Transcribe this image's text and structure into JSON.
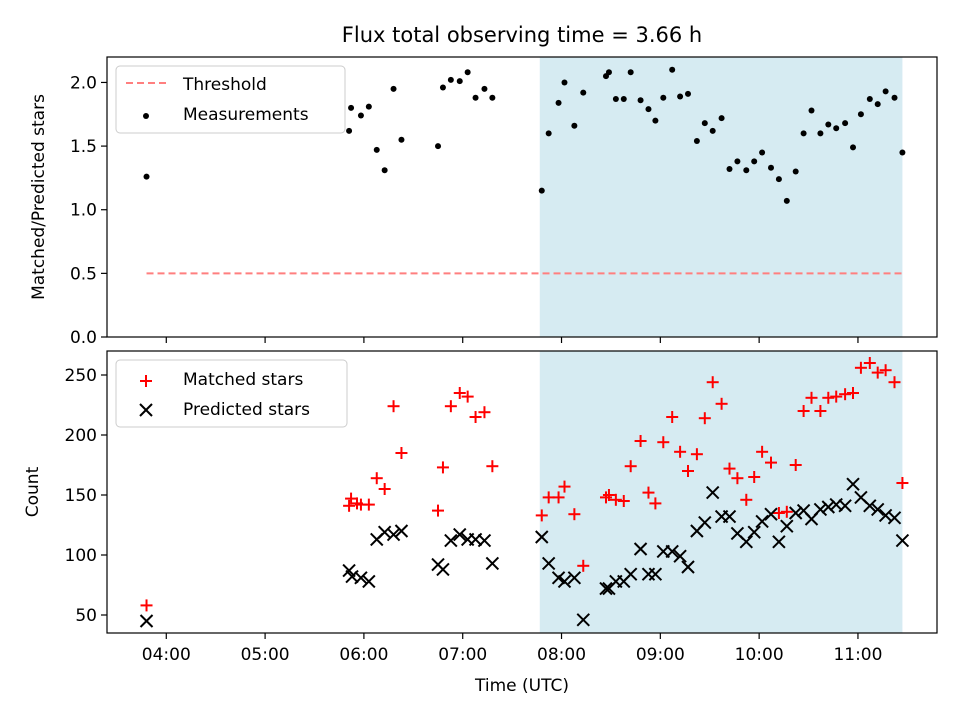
{
  "title": "Flux total observing time = 3.66 h",
  "xlabel": "Time (UTC)",
  "x_ticks": [
    "04:00",
    "05:00",
    "06:00",
    "07:00",
    "08:00",
    "09:00",
    "10:00",
    "11:00"
  ],
  "chart_data": [
    {
      "type": "scatter",
      "ylabel": "Matched/Predicted stars",
      "ylim": [
        0,
        2.2
      ],
      "yticks": [
        "0.0",
        "0.5",
        "1.0",
        "1.5",
        "2.0"
      ],
      "xlim_hours": [
        3.4,
        11.8
      ],
      "grid": false,
      "legend_position": "upper left",
      "shaded_span_hours": [
        7.78,
        11.45
      ],
      "threshold": {
        "name": "Threshold",
        "value": 0.5,
        "x_start": 3.8,
        "x_end": 11.45,
        "color": "#ff7f7f"
      },
      "series": [
        {
          "name": "Measurements",
          "color": "#000000",
          "x": [
            3.8,
            5.85,
            5.87,
            5.97,
            6.05,
            6.13,
            6.21,
            6.3,
            6.38,
            6.75,
            6.8,
            6.88,
            6.97,
            7.05,
            7.13,
            7.22,
            7.3,
            7.8,
            7.87,
            7.97,
            8.03,
            8.13,
            8.22,
            8.45,
            8.48,
            8.55,
            8.63,
            8.7,
            8.8,
            8.88,
            8.95,
            9.03,
            9.12,
            9.2,
            9.28,
            9.37,
            9.45,
            9.53,
            9.62,
            9.7,
            9.78,
            9.87,
            9.95,
            10.03,
            10.12,
            10.2,
            10.28,
            10.37,
            10.45,
            10.53,
            10.62,
            10.7,
            10.78,
            10.87,
            10.95,
            11.03,
            11.12,
            11.2,
            11.28,
            11.37,
            11.45
          ],
          "y": [
            1.26,
            1.62,
            1.8,
            1.74,
            1.81,
            1.47,
            1.31,
            1.95,
            1.55,
            1.5,
            1.96,
            2.02,
            2.01,
            2.08,
            1.88,
            1.95,
            1.88,
            1.15,
            1.6,
            1.84,
            2.0,
            1.66,
            1.92,
            2.05,
            2.08,
            1.87,
            1.87,
            2.08,
            1.86,
            1.79,
            1.7,
            1.88,
            2.1,
            1.89,
            1.91,
            1.54,
            1.68,
            1.62,
            1.72,
            1.32,
            1.38,
            1.31,
            1.38,
            1.45,
            1.33,
            1.24,
            1.07,
            1.3,
            1.6,
            1.78,
            1.6,
            1.67,
            1.64,
            1.68,
            1.49,
            1.75,
            1.87,
            1.83,
            1.93,
            1.88,
            1.45
          ]
        }
      ]
    },
    {
      "type": "scatter",
      "ylabel": "Count",
      "ylim": [
        35,
        270
      ],
      "yticks": [
        "50",
        "100",
        "150",
        "200",
        "250"
      ],
      "xlim_hours": [
        3.4,
        11.8
      ],
      "grid": false,
      "legend_position": "upper left",
      "shaded_span_hours": [
        7.78,
        11.45
      ],
      "series": [
        {
          "name": "Matched stars",
          "marker": "+",
          "color": "#ff0000",
          "x": [
            3.8,
            5.85,
            5.87,
            5.93,
            5.97,
            6.05,
            6.13,
            6.21,
            6.3,
            6.38,
            6.75,
            6.8,
            6.88,
            6.97,
            7.05,
            7.13,
            7.22,
            7.3,
            7.8,
            7.87,
            7.97,
            8.03,
            8.13,
            8.22,
            8.45,
            8.48,
            8.55,
            8.63,
            8.7,
            8.8,
            8.88,
            8.95,
            9.03,
            9.12,
            9.2,
            9.28,
            9.37,
            9.45,
            9.53,
            9.62,
            9.7,
            9.78,
            9.87,
            9.95,
            10.03,
            10.12,
            10.2,
            10.28,
            10.37,
            10.45,
            10.53,
            10.62,
            10.7,
            10.78,
            10.87,
            10.95,
            11.03,
            11.12,
            11.2,
            11.28,
            11.37,
            11.45
          ],
          "y": [
            58,
            141,
            147,
            143,
            142,
            142,
            164,
            155,
            224,
            185,
            137,
            173,
            224,
            235,
            232,
            215,
            219,
            174,
            133,
            148,
            148,
            157,
            134,
            91,
            148,
            150,
            146,
            145,
            174,
            195,
            152,
            143,
            194,
            215,
            186,
            170,
            184,
            214,
            244,
            226,
            172,
            164,
            146,
            165,
            186,
            177,
            135,
            136,
            175,
            220,
            231,
            220,
            231,
            232,
            234,
            235,
            256,
            260,
            252,
            254,
            244,
            160
          ]
        },
        {
          "name": "Predicted stars",
          "marker": "x",
          "color": "#000000",
          "x": [
            3.8,
            5.85,
            5.88,
            5.97,
            6.05,
            6.13,
            6.21,
            6.3,
            6.38,
            6.75,
            6.8,
            6.88,
            6.97,
            7.05,
            7.13,
            7.22,
            7.3,
            7.8,
            7.87,
            7.97,
            8.03,
            8.13,
            8.22,
            8.45,
            8.48,
            8.55,
            8.63,
            8.7,
            8.8,
            8.88,
            8.95,
            9.03,
            9.12,
            9.2,
            9.28,
            9.37,
            9.45,
            9.53,
            9.62,
            9.7,
            9.78,
            9.87,
            9.95,
            10.03,
            10.12,
            10.2,
            10.28,
            10.37,
            10.45,
            10.53,
            10.62,
            10.7,
            10.78,
            10.87,
            10.95,
            11.03,
            11.12,
            11.2,
            11.28,
            11.37,
            11.45
          ],
          "y": [
            45,
            87,
            82,
            81,
            78,
            113,
            119,
            117,
            120,
            92,
            88,
            112,
            117,
            113,
            113,
            112,
            93,
            115,
            93,
            81,
            78,
            81,
            46,
            72,
            72,
            78,
            78,
            84,
            105,
            84,
            84,
            103,
            103,
            99,
            90,
            120,
            127,
            152,
            132,
            132,
            118,
            111,
            119,
            128,
            134,
            111,
            124,
            135,
            137,
            130,
            138,
            140,
            142,
            141,
            159,
            148,
            141,
            138,
            133,
            131,
            112
          ]
        }
      ]
    }
  ]
}
